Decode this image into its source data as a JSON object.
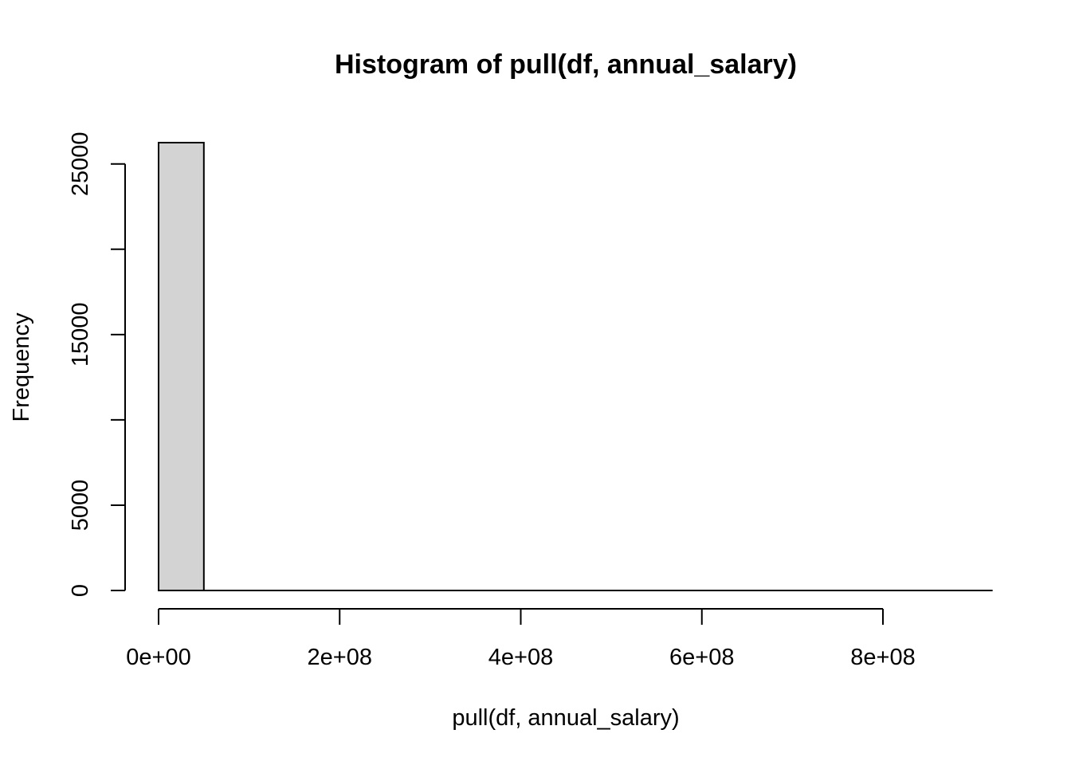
{
  "chart_data": {
    "type": "bar",
    "title": "Histogram of pull(df, annual_salary)",
    "xlabel": "pull(df, annual_salary)",
    "ylabel": "Frequency",
    "bar_color": "#d3d3d3",
    "bin_width": 50000000,
    "bins": [
      {
        "start": 0,
        "end": 50000000,
        "count": 26250
      },
      {
        "start": 50000000,
        "end": 100000000,
        "count": 0
      },
      {
        "start": 100000000,
        "end": 150000000,
        "count": 0
      },
      {
        "start": 150000000,
        "end": 200000000,
        "count": 0
      },
      {
        "start": 200000000,
        "end": 250000000,
        "count": 0
      },
      {
        "start": 250000000,
        "end": 300000000,
        "count": 0
      },
      {
        "start": 300000000,
        "end": 350000000,
        "count": 0
      },
      {
        "start": 350000000,
        "end": 400000000,
        "count": 0
      },
      {
        "start": 400000000,
        "end": 450000000,
        "count": 0
      },
      {
        "start": 450000000,
        "end": 500000000,
        "count": 0
      },
      {
        "start": 500000000,
        "end": 550000000,
        "count": 0
      },
      {
        "start": 550000000,
        "end": 600000000,
        "count": 0
      },
      {
        "start": 600000000,
        "end": 650000000,
        "count": 0
      },
      {
        "start": 650000000,
        "end": 700000000,
        "count": 0
      },
      {
        "start": 700000000,
        "end": 750000000,
        "count": 0
      },
      {
        "start": 750000000,
        "end": 800000000,
        "count": 0
      },
      {
        "start": 800000000,
        "end": 850000000,
        "count": 0
      },
      {
        "start": 850000000,
        "end": 900000000,
        "count": 0
      }
    ],
    "xlim": [
      0,
      900000000
    ],
    "ylim": [
      0,
      26250
    ],
    "x_ticks": [
      {
        "value": 0,
        "label": "0e+00"
      },
      {
        "value": 200000000,
        "label": "2e+08"
      },
      {
        "value": 400000000,
        "label": "4e+08"
      },
      {
        "value": 600000000,
        "label": "6e+08"
      },
      {
        "value": 800000000,
        "label": "8e+08"
      }
    ],
    "y_ticks": [
      {
        "value": 0,
        "label": "0"
      },
      {
        "value": 5000,
        "label": "5000"
      },
      {
        "value": 10000,
        "label": ""
      },
      {
        "value": 15000,
        "label": "15000"
      },
      {
        "value": 20000,
        "label": ""
      },
      {
        "value": 25000,
        "label": "25000"
      }
    ],
    "grid": false,
    "legend": "none"
  }
}
